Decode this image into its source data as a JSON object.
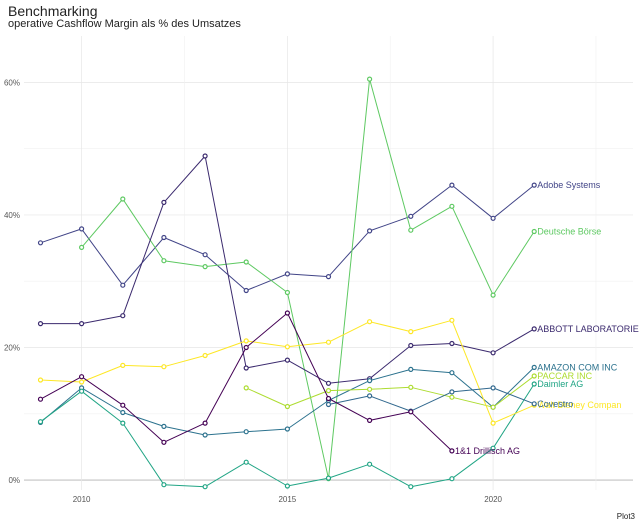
{
  "chart_data": {
    "type": "line",
    "title": "Benchmarking",
    "subtitle": "operative Cashflow Margin als % des Umsatzes",
    "caption": "Plot3",
    "xlim": [
      2008.6,
      2023.4
    ],
    "ylim": [
      -1.5,
      67
    ],
    "x_ticks": [
      2010,
      2015,
      2020
    ],
    "y_ticks": [
      {
        "value": 0,
        "label": "0%"
      },
      {
        "value": 20,
        "label": "20%"
      },
      {
        "value": 40,
        "label": "40%"
      },
      {
        "value": 60,
        "label": "60%"
      }
    ],
    "series": [
      {
        "name": "Adobe Systems",
        "color": "#414487",
        "x": [
          2009,
          2010,
          2011,
          2012,
          2013,
          2014,
          2015,
          2016,
          2017,
          2018,
          2019,
          2020,
          2021
        ],
        "y": [
          35.8,
          37.9,
          29.4,
          36.6,
          34.0,
          28.6,
          31.1,
          30.7,
          37.6,
          39.8,
          44.5,
          39.5,
          44.5
        ]
      },
      {
        "name": "Deutsche Börse",
        "color": "#5ec962",
        "x": [
          2010,
          2011,
          2012,
          2013,
          2014,
          2015,
          2016,
          2017,
          2018,
          2019,
          2020,
          2021
        ],
        "y": [
          35.1,
          42.4,
          33.1,
          32.2,
          32.9,
          28.3,
          0.2,
          60.5,
          37.7,
          41.3,
          27.9,
          37.5
        ]
      },
      {
        "name": "ABBOTT LABORATORIE",
        "color": "#3b2a6e",
        "x": [
          2009,
          2010,
          2011,
          2012,
          2013,
          2014,
          2015,
          2016,
          2017,
          2018,
          2019,
          2020,
          2021
        ],
        "y": [
          23.6,
          23.6,
          24.8,
          41.9,
          48.9,
          16.9,
          18.1,
          14.6,
          15.3,
          20.3,
          20.6,
          19.2,
          22.8
        ]
      },
      {
        "name": "AMAZON COM INC",
        "color": "#2c728e",
        "x": [
          2009,
          2010,
          2011,
          2012,
          2013,
          2014,
          2015,
          2016,
          2017,
          2018,
          2019,
          2020,
          2021
        ],
        "y": [
          8.7,
          13.9,
          10.2,
          8.1,
          6.8,
          7.3,
          7.7,
          12.0,
          15.0,
          16.7,
          16.2,
          11.0,
          17.0
        ]
      },
      {
        "name": "PACCAR INC",
        "color": "#addc30",
        "x": [
          2014,
          2015,
          2016,
          2017,
          2018,
          2019,
          2020,
          2021
        ],
        "y": [
          13.9,
          11.1,
          13.5,
          13.7,
          14.0,
          12.5,
          11.0,
          15.7
        ]
      },
      {
        "name": "Daimler AG",
        "color": "#21a585",
        "x": [
          2009,
          2010,
          2011,
          2012,
          2013,
          2014,
          2015,
          2016,
          2017,
          2018,
          2019,
          2020,
          2021
        ],
        "y": [
          8.8,
          13.4,
          8.6,
          -0.7,
          -1.0,
          2.7,
          -0.9,
          0.3,
          2.4,
          -1.0,
          0.2,
          4.8,
          14.5
        ]
      },
      {
        "name": "Walt Disney Compan",
        "color": "#fde725",
        "x": [
          2009,
          2010,
          2011,
          2012,
          2013,
          2014,
          2015,
          2016,
          2017,
          2018,
          2019,
          2020,
          2021
        ],
        "y": [
          15.1,
          14.8,
          17.3,
          17.1,
          18.8,
          21.0,
          20.1,
          20.8,
          23.9,
          22.4,
          24.1,
          8.6,
          11.3
        ]
      },
      {
        "name": "Covestro",
        "color": "#31688e",
        "x": [
          2016,
          2017,
          2018,
          2019,
          2020,
          2021
        ],
        "y": [
          11.4,
          12.7,
          10.4,
          13.3,
          13.9,
          11.5
        ]
      },
      {
        "name": "1&1 Drillisch AG",
        "color": "#440154",
        "x": [
          2009,
          2010,
          2011,
          2012,
          2013,
          2014,
          2015,
          2016,
          2017,
          2018,
          2019
        ],
        "y": [
          12.2,
          15.6,
          11.3,
          5.7,
          8.6,
          20.0,
          25.2,
          12.3,
          9.0,
          10.3,
          4.4
        ]
      }
    ]
  }
}
